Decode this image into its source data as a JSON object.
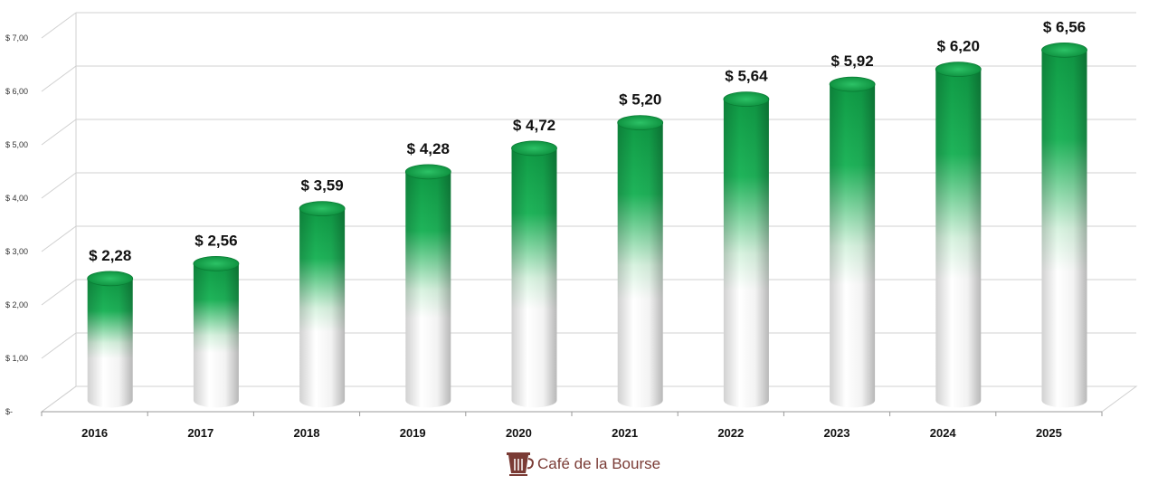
{
  "chart_data": {
    "type": "bar",
    "categories": [
      "2016",
      "2017",
      "2018",
      "2019",
      "2020",
      "2021",
      "2022",
      "2023",
      "2024",
      "2025"
    ],
    "values": [
      2.28,
      2.56,
      3.59,
      4.28,
      4.72,
      5.2,
      5.64,
      5.92,
      6.2,
      6.56
    ],
    "data_labels": [
      "$ 2,28",
      "$ 2,56",
      "$ 3,59",
      "$ 4,28",
      "$ 4,72",
      "$ 5,20",
      "$ 5,64",
      "$ 5,92",
      "$ 6,20",
      "$ 6,56"
    ],
    "ylim": [
      0,
      7
    ],
    "yticks": [
      0,
      1,
      2,
      3,
      4,
      5,
      6,
      7
    ],
    "ytick_labels": [
      "$-",
      "$ 1,00",
      "$ 2,00",
      "$ 3,00",
      "$ 4,00",
      "$ 5,00",
      "$ 6,00",
      "$ 7,00"
    ],
    "grid": true,
    "style": "3d-cylinder",
    "colors": {
      "bar_top": "#0f9b45",
      "bar_bottom": "#ffffff",
      "grid": "#d0d0d0"
    }
  },
  "footer": {
    "brand": "Café de la Bourse",
    "logo_icon": "coffee-cup-icon",
    "brand_color": "#7a3b35"
  }
}
